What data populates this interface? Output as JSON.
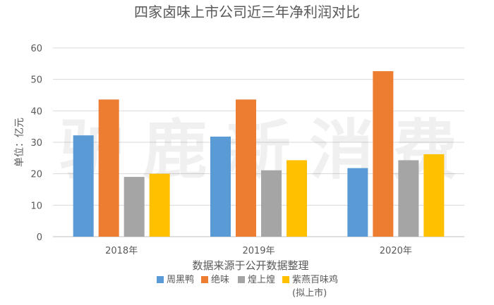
{
  "chart_data": {
    "type": "bar",
    "title": "四家卤味上市公司近三年净利润对比",
    "ylabel": "单位：亿元",
    "xlabel": "",
    "source_note": "数据来源于公开数据整理",
    "watermark": "驴鹿新消费",
    "categories": [
      "2018年",
      "2019年",
      "2020年"
    ],
    "ylim": [
      0,
      60
    ],
    "yticks": [
      0,
      10,
      20,
      30,
      40,
      50,
      60
    ],
    "grid": true,
    "legend_position": "bottom",
    "series": [
      {
        "name": "周黑鸭",
        "color": "#5B9BD5",
        "values": [
          32.2,
          31.8,
          21.8
        ]
      },
      {
        "name": "绝味",
        "color": "#ED7D31",
        "values": [
          43.6,
          43.6,
          52.6
        ]
      },
      {
        "name": "煌上煌",
        "color": "#A5A5A5",
        "values": [
          19.0,
          21.1,
          24.3
        ]
      },
      {
        "name": "紫燕百味鸡",
        "note": "(拟上市)",
        "color": "#FFC000",
        "values": [
          20.0,
          24.3,
          26.2
        ]
      }
    ]
  }
}
